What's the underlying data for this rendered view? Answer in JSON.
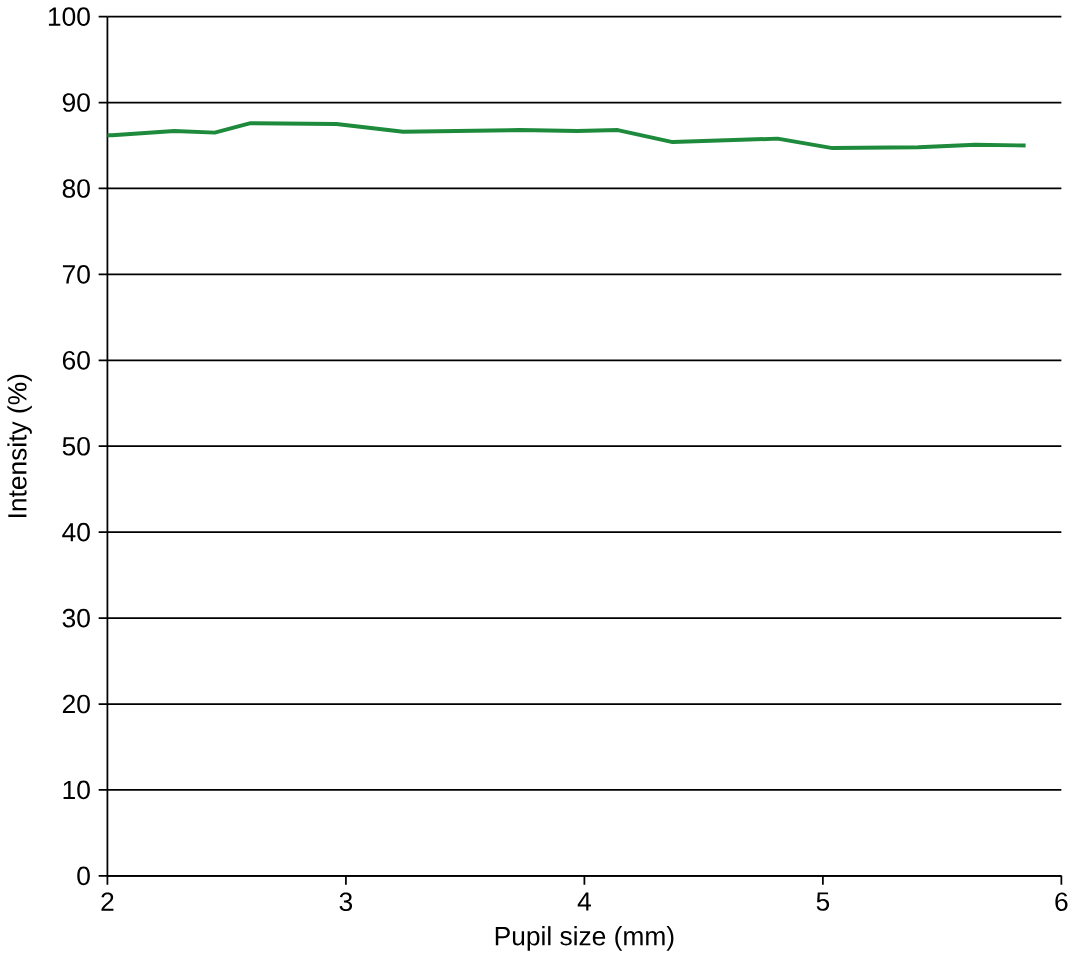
{
  "chart_data": {
    "type": "line",
    "xlabel": "Pupil size (mm)",
    "ylabel": "Intensity (%)",
    "x": [
      2.0,
      2.02,
      2.28,
      2.45,
      2.6,
      2.96,
      3.24,
      3.73,
      3.97,
      4.14,
      4.37,
      4.81,
      5.04,
      5.4,
      5.64,
      5.85
    ],
    "series": [
      {
        "color": "#1e8a3c",
        "values": [
          86.2,
          86.2,
          86.7,
          86.5,
          87.6,
          87.5,
          86.6,
          86.8,
          86.7,
          86.8,
          85.4,
          85.8,
          84.7,
          84.8,
          85.1,
          85.0
        ]
      }
    ],
    "xlim": [
      2,
      6
    ],
    "ylim": [
      0,
      100
    ],
    "xticks": [
      2,
      3,
      4,
      5,
      6
    ],
    "yticks": [
      0,
      10,
      20,
      30,
      40,
      50,
      60,
      70,
      80,
      90,
      100
    ],
    "grid": "y",
    "marker": "none",
    "line_style": "solid"
  }
}
